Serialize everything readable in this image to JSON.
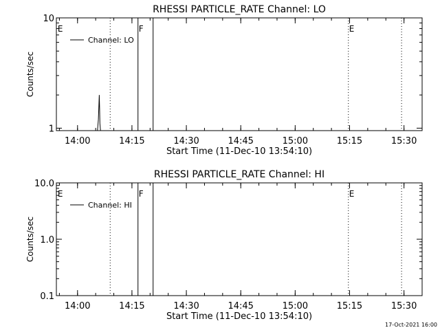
{
  "chart_data": [
    {
      "type": "line",
      "title": "RHESSI PARTICLE_RATE Channel: LO",
      "xlabel": "Start Time (11-Dec-10 13:54:10)",
      "ylabel": "Counts/sec",
      "xlim": [
        "13:54:10",
        "15:35:00"
      ],
      "x_ticks": [
        "14:00",
        "14:15",
        "14:30",
        "14:45",
        "15:00",
        "15:15",
        "15:30"
      ],
      "y_scale": "log",
      "ylim": [
        0.95,
        10
      ],
      "y_ticks": [
        {
          "value": 1,
          "label": "1"
        },
        {
          "value": 10,
          "label": "10"
        }
      ],
      "legend": {
        "location": "top-left",
        "entries": [
          "Channel: LO"
        ]
      },
      "series": [
        {
          "x": [
            "14:05:30",
            "14:05:45",
            "14:05:55",
            "14:06:00",
            "14:06:05",
            "14:06:10",
            "14:06:20"
          ],
          "y": [
            0.95,
            1.2,
            1.7,
            2.0,
            1.5,
            1.1,
            0.95
          ]
        }
      ],
      "markers": [
        {
          "x": "13:54:20",
          "style": "none",
          "label": "E"
        },
        {
          "x": "14:09:00",
          "style": "dotted",
          "label": ""
        },
        {
          "x": "14:16:40",
          "style": "solid",
          "label": "F"
        },
        {
          "x": "14:20:50",
          "style": "solid",
          "label": ""
        },
        {
          "x": "15:14:40",
          "style": "dotted",
          "label": "E"
        },
        {
          "x": "15:29:20",
          "style": "dotted",
          "label": ""
        }
      ]
    },
    {
      "type": "line",
      "title": "RHESSI PARTICLE_RATE Channel: HI",
      "xlabel": "Start Time (11-Dec-10 13:54:10)",
      "ylabel": "Counts/sec",
      "xlim": [
        "13:54:10",
        "15:35:00"
      ],
      "x_ticks": [
        "14:00",
        "14:15",
        "14:30",
        "14:45",
        "15:00",
        "15:15",
        "15:30"
      ],
      "y_scale": "log",
      "ylim": [
        0.1,
        10
      ],
      "y_ticks": [
        {
          "value": 0.1,
          "label": "0.1"
        },
        {
          "value": 1,
          "label": "1.0"
        },
        {
          "value": 10,
          "label": "10.0"
        }
      ],
      "legend": {
        "location": "top-left",
        "entries": [
          "Channel: HI"
        ]
      },
      "series": [],
      "markers": [
        {
          "x": "13:54:20",
          "style": "none",
          "label": "E"
        },
        {
          "x": "14:09:00",
          "style": "dotted",
          "label": ""
        },
        {
          "x": "14:16:40",
          "style": "solid",
          "label": "F"
        },
        {
          "x": "14:20:50",
          "style": "solid",
          "label": ""
        },
        {
          "x": "15:14:40",
          "style": "dotted",
          "label": "E"
        },
        {
          "x": "15:29:20",
          "style": "dotted",
          "label": ""
        }
      ]
    }
  ],
  "footer": {
    "timestamp": "17-Oct-2021 16:00"
  }
}
